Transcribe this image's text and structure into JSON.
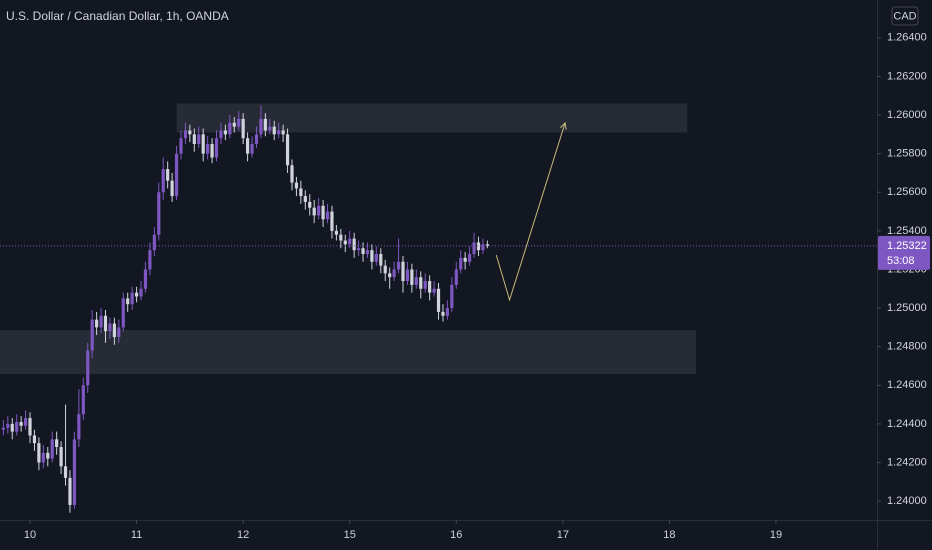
{
  "chart_data": {
    "type": "candlestick",
    "title": "U.S. Dollar / Canadian Dollar, 1h, OANDA",
    "currency": "CAD",
    "up_color": "#7e57c2",
    "down_color": "#d1d4dc",
    "xlim": [
      -6.76,
      190.75
    ],
    "ylim": [
      1.23902,
      1.26596
    ],
    "xticks": [
      {
        "value": 0,
        "label": "10"
      },
      {
        "value": 24,
        "label": "11"
      },
      {
        "value": 48,
        "label": "12"
      },
      {
        "value": 72,
        "label": "15"
      },
      {
        "value": 96,
        "label": "16"
      },
      {
        "value": 120,
        "label": "17"
      },
      {
        "value": 144,
        "label": "18"
      },
      {
        "value": 168,
        "label": "19"
      }
    ],
    "yticks": [
      {
        "value": 1.264,
        "label": "1.26400"
      },
      {
        "value": 1.262,
        "label": "1.26200"
      },
      {
        "value": 1.26,
        "label": "1.26000"
      },
      {
        "value": 1.258,
        "label": "1.25800"
      },
      {
        "value": 1.256,
        "label": "1.25600"
      },
      {
        "value": 1.254,
        "label": "1.25400"
      },
      {
        "value": 1.252,
        "label": "1.25200"
      },
      {
        "value": 1.25,
        "label": "1.25000"
      },
      {
        "value": 1.248,
        "label": "1.24800"
      },
      {
        "value": 1.246,
        "label": "1.24600"
      },
      {
        "value": 1.244,
        "label": "1.24400"
      },
      {
        "value": 1.242,
        "label": "1.24200"
      },
      {
        "value": 1.24,
        "label": "1.24000"
      }
    ],
    "x": [
      -6,
      -5,
      -4,
      -3,
      -2,
      -1,
      0,
      1,
      2,
      3,
      4,
      5,
      6,
      7,
      8,
      9,
      10,
      11,
      12,
      13,
      14,
      15,
      16,
      17,
      18,
      19,
      20,
      21,
      22,
      23,
      24,
      25,
      26,
      27,
      28,
      29,
      30,
      31,
      32,
      33,
      34,
      35,
      36,
      37,
      38,
      39,
      40,
      41,
      42,
      43,
      44,
      45,
      46,
      47,
      48,
      49,
      50,
      51,
      52,
      53,
      54,
      55,
      56,
      57,
      58,
      59,
      60,
      61,
      62,
      63,
      64,
      65,
      66,
      67,
      68,
      69,
      70,
      71,
      72,
      73,
      74,
      75,
      76,
      77,
      78,
      79,
      80,
      81,
      82,
      83,
      84,
      85,
      86,
      87,
      88,
      89,
      90,
      91,
      92,
      93,
      94,
      95,
      96,
      97,
      98,
      99,
      100,
      101,
      102,
      103
    ],
    "candles": [
      [
        1.2437,
        1.2442,
        1.2434,
        1.2438
      ],
      [
        1.2438,
        1.2444,
        1.2435,
        1.244
      ],
      [
        1.244,
        1.2443,
        1.2432,
        1.2436
      ],
      [
        1.2436,
        1.2445,
        1.2434,
        1.2441
      ],
      [
        1.2441,
        1.2444,
        1.2436,
        1.2439
      ],
      [
        1.2439,
        1.2447,
        1.2437,
        1.2443
      ],
      [
        1.2443,
        1.2446,
        1.243,
        1.2434
      ],
      [
        1.2434,
        1.2437,
        1.2426,
        1.243
      ],
      [
        1.243,
        1.2433,
        1.2416,
        1.242
      ],
      [
        1.242,
        1.2429,
        1.2417,
        1.2425
      ],
      [
        1.2425,
        1.2428,
        1.2418,
        1.2422
      ],
      [
        1.2422,
        1.2436,
        1.242,
        1.2432
      ],
      [
        1.2432,
        1.2436,
        1.2424,
        1.2428
      ],
      [
        1.2428,
        1.2431,
        1.2414,
        1.2418
      ],
      [
        1.2418,
        1.245,
        1.2408,
        1.2412
      ],
      [
        1.2412,
        1.2416,
        1.2394,
        1.2398
      ],
      [
        1.2398,
        1.2436,
        1.2396,
        1.2432
      ],
      [
        1.2432,
        1.2458,
        1.2428,
        1.2445
      ],
      [
        1.2445,
        1.2464,
        1.2442,
        1.246
      ],
      [
        1.246,
        1.2482,
        1.2456,
        1.2478
      ],
      [
        1.2478,
        1.2499,
        1.2474,
        1.2494
      ],
      [
        1.2494,
        1.2498,
        1.2486,
        1.249
      ],
      [
        1.249,
        1.25,
        1.2487,
        1.2496
      ],
      [
        1.2496,
        1.2499,
        1.2482,
        1.2488
      ],
      [
        1.2488,
        1.2495,
        1.2484,
        1.2492
      ],
      [
        1.2492,
        1.2495,
        1.2481,
        1.2485
      ],
      [
        1.2485,
        1.2494,
        1.2482,
        1.249
      ],
      [
        1.249,
        1.2508,
        1.2488,
        1.2505
      ],
      [
        1.2505,
        1.2508,
        1.2498,
        1.2502
      ],
      [
        1.2502,
        1.2511,
        1.2499,
        1.2508
      ],
      [
        1.2508,
        1.2511,
        1.2503,
        1.2506
      ],
      [
        1.2506,
        1.2514,
        1.2504,
        1.251
      ],
      [
        1.251,
        1.2524,
        1.2508,
        1.252
      ],
      [
        1.252,
        1.2534,
        1.2517,
        1.253
      ],
      [
        1.253,
        1.2542,
        1.2527,
        1.2538
      ],
      [
        1.2538,
        1.2565,
        1.2535,
        1.256
      ],
      [
        1.256,
        1.2578,
        1.2556,
        1.2572
      ],
      [
        1.2572,
        1.2576,
        1.2562,
        1.2566
      ],
      [
        1.2566,
        1.257,
        1.2555,
        1.2558
      ],
      [
        1.2558,
        1.2584,
        1.2556,
        1.258
      ],
      [
        1.258,
        1.2592,
        1.2577,
        1.2588
      ],
      [
        1.2588,
        1.2596,
        1.2585,
        1.2592
      ],
      [
        1.2592,
        1.2595,
        1.2586,
        1.259
      ],
      [
        1.259,
        1.2593,
        1.2581,
        1.2585
      ],
      [
        1.2585,
        1.2594,
        1.2583,
        1.259
      ],
      [
        1.259,
        1.2593,
        1.2576,
        1.258
      ],
      [
        1.258,
        1.2589,
        1.2577,
        1.2585
      ],
      [
        1.2585,
        1.2588,
        1.2575,
        1.2578
      ],
      [
        1.2578,
        1.2592,
        1.2576,
        1.2588
      ],
      [
        1.2588,
        1.2596,
        1.2585,
        1.2592
      ],
      [
        1.2592,
        1.2595,
        1.2587,
        1.259
      ],
      [
        1.259,
        1.26,
        1.2588,
        1.2596
      ],
      [
        1.2596,
        1.2599,
        1.2591,
        1.2594
      ],
      [
        1.2594,
        1.2602,
        1.2592,
        1.2598
      ],
      [
        1.2598,
        1.2601,
        1.2585,
        1.2588
      ],
      [
        1.2588,
        1.2591,
        1.2576,
        1.258
      ],
      [
        1.258,
        1.2589,
        1.2578,
        1.2585
      ],
      [
        1.2585,
        1.2594,
        1.2583,
        1.259
      ],
      [
        1.259,
        1.2605,
        1.2588,
        1.2598
      ],
      [
        1.2598,
        1.2601,
        1.2589,
        1.2592
      ],
      [
        1.2592,
        1.2598,
        1.259,
        1.2594
      ],
      [
        1.2594,
        1.2597,
        1.2587,
        1.259
      ],
      [
        1.259,
        1.2596,
        1.2588,
        1.2592
      ],
      [
        1.2592,
        1.2595,
        1.2586,
        1.259
      ],
      [
        1.259,
        1.2593,
        1.257,
        1.2574
      ],
      [
        1.2574,
        1.2577,
        1.2561,
        1.2565
      ],
      [
        1.2565,
        1.2568,
        1.2558,
        1.2562
      ],
      [
        1.2562,
        1.2566,
        1.2554,
        1.2558
      ],
      [
        1.2558,
        1.2561,
        1.2551,
        1.2555
      ],
      [
        1.2555,
        1.2559,
        1.2548,
        1.2552
      ],
      [
        1.2552,
        1.2556,
        1.2544,
        1.2548
      ],
      [
        1.2548,
        1.2557,
        1.2546,
        1.2553
      ],
      [
        1.2553,
        1.2556,
        1.2542,
        1.2546
      ],
      [
        1.2546,
        1.2554,
        1.2544,
        1.255
      ],
      [
        1.255,
        1.2553,
        1.2536,
        1.254
      ],
      [
        1.254,
        1.2543,
        1.2535,
        1.2538
      ],
      [
        1.2538,
        1.2541,
        1.2531,
        1.2535
      ],
      [
        1.2535,
        1.2538,
        1.2529,
        1.2533
      ],
      [
        1.2533,
        1.254,
        1.2531,
        1.2536
      ],
      [
        1.2536,
        1.2539,
        1.2526,
        1.253
      ],
      [
        1.253,
        1.2535,
        1.2527,
        1.2531
      ],
      [
        1.2531,
        1.2534,
        1.2524,
        1.2528
      ],
      [
        1.2528,
        1.2534,
        1.2526,
        1.253
      ],
      [
        1.253,
        1.2533,
        1.252,
        1.2524
      ],
      [
        1.2524,
        1.2532,
        1.2522,
        1.2528
      ],
      [
        1.2528,
        1.2531,
        1.2518,
        1.2522
      ],
      [
        1.2522,
        1.2525,
        1.2514,
        1.2518
      ],
      [
        1.2518,
        1.2521,
        1.251,
        1.2516
      ],
      [
        1.2516,
        1.2524,
        1.2514,
        1.252
      ],
      [
        1.252,
        1.2536,
        1.2518,
        1.2524
      ],
      [
        1.2524,
        1.2527,
        1.2508,
        1.2514
      ],
      [
        1.2514,
        1.2524,
        1.2512,
        1.252
      ],
      [
        1.252,
        1.2523,
        1.2508,
        1.2512
      ],
      [
        1.2512,
        1.252,
        1.251,
        1.2516
      ],
      [
        1.2516,
        1.2519,
        1.2505,
        1.251
      ],
      [
        1.251,
        1.2518,
        1.2508,
        1.2514
      ],
      [
        1.2514,
        1.2517,
        1.2504,
        1.2508
      ],
      [
        1.2508,
        1.2514,
        1.2506,
        1.251
      ],
      [
        1.251,
        1.2513,
        1.2494,
        1.2498
      ],
      [
        1.2498,
        1.2502,
        1.2493,
        1.2496
      ],
      [
        1.2496,
        1.2504,
        1.2494,
        1.25
      ],
      [
        1.25,
        1.2516,
        1.2498,
        1.2512
      ],
      [
        1.2512,
        1.2524,
        1.251,
        1.252
      ],
      [
        1.252,
        1.253,
        1.2518,
        1.2526
      ],
      [
        1.2526,
        1.2529,
        1.252,
        1.2524
      ],
      [
        1.2524,
        1.2532,
        1.2522,
        1.2528
      ],
      [
        1.2528,
        1.2539,
        1.2526,
        1.2534
      ],
      [
        1.2534,
        1.2537,
        1.2527,
        1.253
      ],
      [
        1.253,
        1.2536,
        1.2528,
        1.2533
      ],
      [
        1.2533,
        1.2535,
        1.2531,
        1.25322
      ]
    ],
    "zones": [
      {
        "x": [
          33,
          148
        ],
        "y": [
          1.2606,
          1.2591
        ]
      },
      {
        "x": [
          -6.76,
          150
        ],
        "y": [
          1.24886,
          1.24658
        ]
      }
    ],
    "drawing": {
      "color": "#c9b97a",
      "x": [
        105,
        108,
        120.5
      ],
      "y": [
        1.25275,
        1.25042,
        1.25959
      ]
    },
    "current_price": 1.25322,
    "countdown": "53:08",
    "price_label_color": "#7e57c2"
  }
}
